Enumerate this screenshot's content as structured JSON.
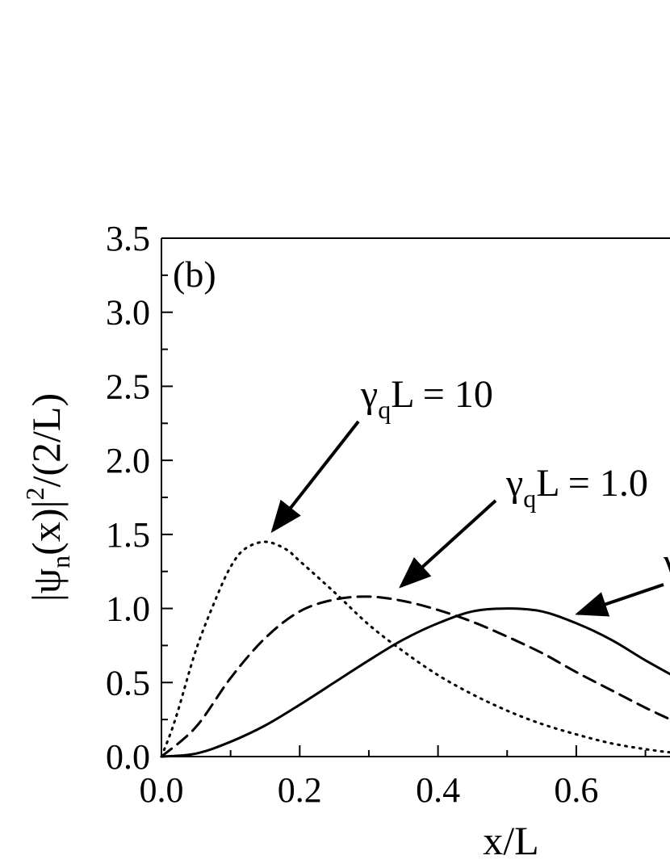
{
  "chart_data": {
    "type": "line",
    "panel_label": "(b)",
    "xlabel": "x/L",
    "ylabel": {
      "bar1": "|",
      "psi": "ψ",
      "sub_n": "n",
      "mid": "(x)|",
      "sup_2": "2",
      "tail": "/(2/L)"
    },
    "xlim": [
      0.0,
      0.75
    ],
    "ylim": [
      0.0,
      3.5
    ],
    "x_ticks": [
      "0.0",
      "0.2",
      "0.4",
      "0.6"
    ],
    "y_ticks": [
      "0.0",
      "0.5",
      "1.0",
      "1.5",
      "2.0",
      "2.5",
      "3.0",
      "3.5"
    ],
    "grid": false,
    "series": [
      {
        "style": "solid",
        "x": [
          0.0,
          0.05,
          0.1,
          0.15,
          0.2,
          0.25,
          0.3,
          0.35,
          0.4,
          0.45,
          0.5,
          0.55,
          0.6,
          0.65,
          0.7,
          0.75
        ],
        "y": [
          0.0,
          0.02,
          0.1,
          0.21,
          0.35,
          0.5,
          0.65,
          0.79,
          0.9,
          0.98,
          1.0,
          0.98,
          0.9,
          0.79,
          0.65,
          0.52
        ]
      },
      {
        "style": "dashed",
        "x": [
          0.0,
          0.05,
          0.1,
          0.15,
          0.2,
          0.25,
          0.3,
          0.35,
          0.4,
          0.45,
          0.5,
          0.55,
          0.6,
          0.65,
          0.7,
          0.75
        ],
        "y": [
          0.0,
          0.2,
          0.53,
          0.8,
          0.98,
          1.06,
          1.08,
          1.05,
          0.99,
          0.91,
          0.81,
          0.7,
          0.57,
          0.45,
          0.33,
          0.22
        ]
      },
      {
        "style": "dotted",
        "x": [
          0.0,
          0.02,
          0.05,
          0.08,
          0.1,
          0.12,
          0.15,
          0.18,
          0.2,
          0.25,
          0.3,
          0.35,
          0.4,
          0.45,
          0.5,
          0.55,
          0.6,
          0.65,
          0.7,
          0.75
        ],
        "y": [
          0.0,
          0.25,
          0.72,
          1.08,
          1.28,
          1.4,
          1.45,
          1.4,
          1.32,
          1.11,
          0.89,
          0.71,
          0.55,
          0.42,
          0.31,
          0.22,
          0.15,
          0.09,
          0.05,
          0.02
        ]
      }
    ],
    "annotations": [
      {
        "pre": "γ",
        "sub": "q",
        "post": "L = 10"
      },
      {
        "pre": "γ",
        "sub": "q",
        "post": "L = 1.0"
      },
      {
        "pre": "γ",
        "sub": "q",
        "post": ""
      }
    ]
  }
}
